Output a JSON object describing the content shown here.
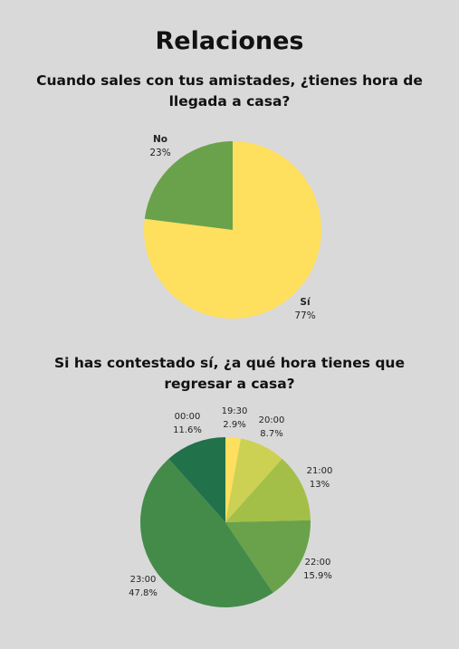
{
  "title": "Relaciones",
  "chart_data": [
    {
      "type": "pie",
      "title": "Cuando sales con tus amistades, ¿tienes hora de llegada a casa?",
      "slices": [
        {
          "label": "Sí",
          "value": 77,
          "value_label": "77%",
          "color": "#ffdf5e"
        },
        {
          "label": "No",
          "value": 23,
          "value_label": "23%",
          "color": "#6aa24b"
        }
      ]
    },
    {
      "type": "pie",
      "title": "Si has contestado sí, ¿a qué hora tienes que regresar a casa?",
      "slices": [
        {
          "label": "19:30",
          "value": 2.9,
          "value_label": "2.9%",
          "color": "#ffdf5e"
        },
        {
          "label": "20:00",
          "value": 8.7,
          "value_label": "8.7%",
          "color": "#cdd153"
        },
        {
          "label": "21:00",
          "value": 13,
          "value_label": "13%",
          "color": "#a3bf48"
        },
        {
          "label": "22:00",
          "value": 15.9,
          "value_label": "15.9%",
          "color": "#6aa24b"
        },
        {
          "label": "23:00",
          "value": 47.8,
          "value_label": "47.8%",
          "color": "#448b4a"
        },
        {
          "label": "00:00",
          "value": 11.6,
          "value_label": "11.6%",
          "color": "#21714b"
        }
      ]
    }
  ]
}
